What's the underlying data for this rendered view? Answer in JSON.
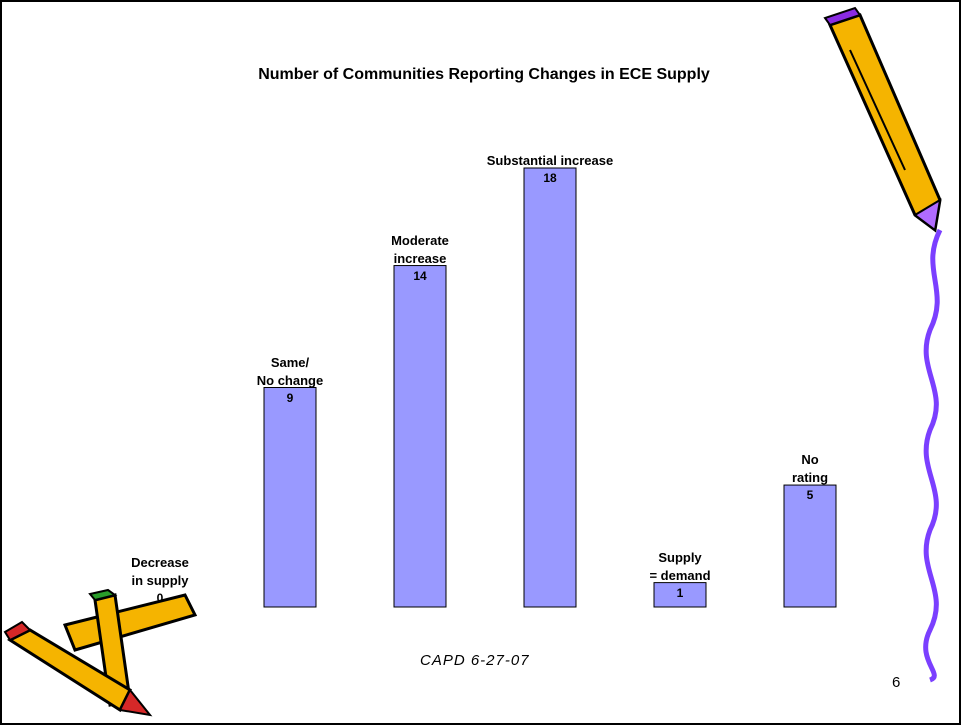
{
  "chart_data": {
    "type": "bar",
    "title": "Number of Communities Reporting Changes in ECE Supply",
    "categories": [
      "Decrease\nin supply",
      "Same/\nNo change",
      "Moderate\nincrease",
      "Substantial increase",
      "Supply\n= demand",
      "No\nrating"
    ],
    "values": [
      0,
      9,
      14,
      18,
      1,
      5
    ],
    "color": "#9999ff",
    "ylim": [
      0,
      18
    ]
  },
  "footer": "CAPD 6-27-07",
  "slide_number": "6"
}
